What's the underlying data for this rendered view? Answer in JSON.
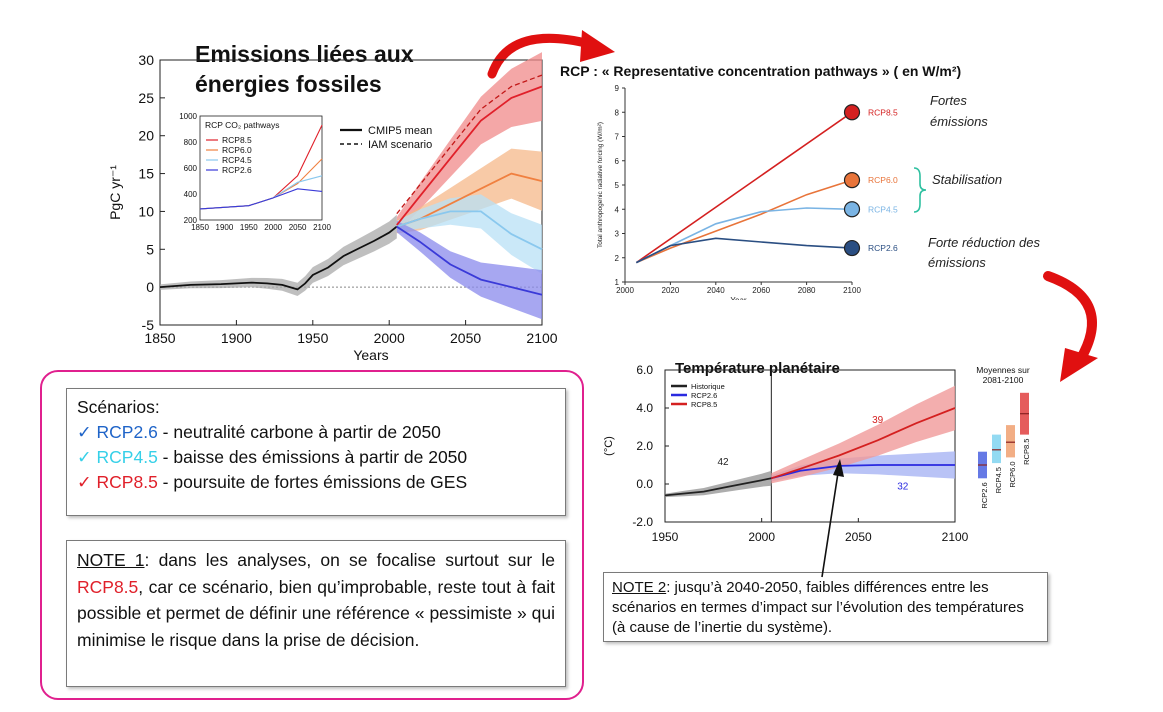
{
  "chart_data": [
    {
      "type": "line",
      "title": "Emissions liées aux énergies fossiles",
      "ylabel": "PgC yr⁻¹",
      "xlabel": "Years",
      "xlim": [
        1850,
        2100
      ],
      "ylim": [
        -5,
        30
      ],
      "xticks": [
        1850,
        1900,
        1950,
        2000,
        2050,
        2100
      ],
      "yticks": [
        -5,
        0,
        5,
        10,
        15,
        20,
        25,
        30
      ],
      "legend": [
        "CMIP5 mean",
        "IAM scenario"
      ],
      "series": [
        {
          "name": "Historical",
          "color": "#555555",
          "x": [
            1850,
            1870,
            1890,
            1910,
            1920,
            1930,
            1940,
            1945,
            1950,
            1960,
            1970,
            1980,
            1990,
            2000,
            2005
          ],
          "y": [
            0,
            0.3,
            0.4,
            0.6,
            0.5,
            0.3,
            -0.3,
            0.5,
            1.6,
            2.6,
            4.1,
            5.1,
            6.1,
            7.2,
            8.0
          ]
        },
        {
          "name": "RCP8.5",
          "color": "#e0202a",
          "x": [
            2005,
            2020,
            2040,
            2060,
            2080,
            2100
          ],
          "y": [
            8.2,
            12,
            17,
            22,
            25,
            26.5
          ]
        },
        {
          "name": "RCP6.0",
          "color": "#f08040",
          "x": [
            2005,
            2020,
            2040,
            2060,
            2080,
            2100
          ],
          "y": [
            8,
            9,
            11,
            13,
            15,
            14
          ]
        },
        {
          "name": "RCP4.5",
          "color": "#8ac8ee",
          "x": [
            2005,
            2020,
            2040,
            2060,
            2080,
            2100
          ],
          "y": [
            8,
            9,
            10,
            10,
            7,
            5
          ]
        },
        {
          "name": "RCP2.6",
          "color": "#3a3ad8",
          "x": [
            2005,
            2020,
            2040,
            2060,
            2080,
            2100
          ],
          "y": [
            8,
            6,
            3,
            1,
            0,
            -1
          ]
        }
      ],
      "inset": {
        "title": "RCP CO₂ pathways",
        "xlim": [
          1850,
          2100
        ],
        "ylim": [
          200,
          1000
        ],
        "xticks": [
          1850,
          1900,
          1950,
          2000,
          2050,
          2100
        ],
        "yticks": [
          200,
          400,
          600,
          800,
          1000
        ],
        "legend": [
          "RCP8.5",
          "RCP6.0",
          "RCP4.5",
          "RCP2.6"
        ],
        "series": [
          {
            "name": "RCP8.5",
            "color": "#e0202a",
            "x": [
              1850,
              1950,
              2000,
              2050,
              2100
            ],
            "y": [
              285,
              310,
              370,
              540,
              930
            ]
          },
          {
            "name": "RCP6.0",
            "color": "#f08040",
            "x": [
              1850,
              1950,
              2000,
              2050,
              2100
            ],
            "y": [
              285,
              310,
              370,
              480,
              670
            ]
          },
          {
            "name": "RCP4.5",
            "color": "#8ac8ee",
            "x": [
              1850,
              1950,
              2000,
              2050,
              2100
            ],
            "y": [
              285,
              310,
              370,
              490,
              540
            ]
          },
          {
            "name": "RCP2.6",
            "color": "#3a3ad8",
            "x": [
              1850,
              1950,
              2000,
              2050,
              2100
            ],
            "y": [
              285,
              310,
              370,
              440,
              420
            ]
          }
        ]
      }
    },
    {
      "type": "line",
      "title": "RCP : « Representative concentration pathways » ( en W/m²)",
      "ylabel": "Total anthropogenic radiative forcing (W/m²)",
      "xlabel": "Year",
      "xlim": [
        2000,
        2100
      ],
      "ylim": [
        1,
        9
      ],
      "xticks": [
        2000,
        2020,
        2040,
        2060,
        2080,
        2100
      ],
      "yticks": [
        1,
        2,
        3,
        4,
        5,
        6,
        7,
        8,
        9
      ],
      "series": [
        {
          "name": "RCP8.5",
          "color": "#d42020",
          "x": [
            2005,
            2100
          ],
          "y": [
            1.8,
            8.0
          ]
        },
        {
          "name": "RCP6.0",
          "color": "#e8743a",
          "x": [
            2005,
            2020,
            2040,
            2060,
            2080,
            2100
          ],
          "y": [
            1.8,
            2.4,
            3.1,
            3.8,
            4.6,
            5.2
          ]
        },
        {
          "name": "RCP4.5",
          "color": "#7ab4e4",
          "x": [
            2005,
            2020,
            2040,
            2060,
            2080,
            2100
          ],
          "y": [
            1.8,
            2.5,
            3.4,
            3.9,
            4.05,
            4.0
          ]
        },
        {
          "name": "RCP2.6",
          "color": "#2a4e82",
          "x": [
            2005,
            2020,
            2040,
            2060,
            2080,
            2100
          ],
          "y": [
            1.8,
            2.5,
            2.8,
            2.65,
            2.5,
            2.4
          ]
        }
      ],
      "annotations": [
        "Fortes émissions",
        "Stabilisation",
        "Forte réduction des émissions"
      ]
    },
    {
      "type": "line",
      "title": "Température planétaire",
      "ylabel": "(°C)",
      "xlim": [
        1950,
        2100
      ],
      "ylim": [
        -2.0,
        6.0
      ],
      "xticks": [
        1950,
        2000,
        2050,
        2100
      ],
      "yticks": [
        -2.0,
        0.0,
        2.0,
        4.0,
        6.0
      ],
      "legend": [
        "Historique",
        "RCP2.6",
        "RCP8.5"
      ],
      "series": [
        {
          "name": "Historique",
          "color": "#222222",
          "x": [
            1950,
            1960,
            1970,
            1980,
            1990,
            2000,
            2005
          ],
          "y": [
            -0.6,
            -0.5,
            -0.4,
            -0.2,
            0.0,
            0.2,
            0.3
          ]
        },
        {
          "name": "RCP2.6",
          "color": "#2a2ae0",
          "x": [
            2005,
            2020,
            2040,
            2060,
            2080,
            2100
          ],
          "y": [
            0.3,
            0.7,
            0.95,
            1.0,
            1.0,
            1.0
          ]
        },
        {
          "name": "RCP8.5",
          "color": "#d42020",
          "x": [
            2005,
            2020,
            2040,
            2060,
            2080,
            2100
          ],
          "y": [
            0.3,
            0.8,
            1.5,
            2.3,
            3.2,
            4.0
          ]
        }
      ],
      "data_labels": [
        "42",
        "39",
        "32"
      ],
      "side_panel": {
        "title": "Moyennes sur 2081-2100",
        "bars": [
          {
            "name": "RCP2.6",
            "color": "#4a62e0",
            "low": 0.3,
            "high": 1.7,
            "mean": 1.0
          },
          {
            "name": "RCP4.5",
            "color": "#80d4f0",
            "low": 1.1,
            "high": 2.6,
            "mean": 1.8
          },
          {
            "name": "RCP6.0",
            "color": "#f0a070",
            "low": 1.4,
            "high": 3.1,
            "mean": 2.2
          },
          {
            "name": "RCP8.5",
            "color": "#e04040",
            "low": 2.6,
            "high": 4.8,
            "mean": 3.7
          }
        ]
      }
    }
  ],
  "scenarios": {
    "heading": "Scénarios:",
    "check": "✓",
    "items": [
      {
        "code": "RCP2.6",
        "sep": " - ",
        "text": "neutralité carbone à partir de 2050",
        "color": "#1f64c8"
      },
      {
        "code": "RCP4.5",
        "sep": " - ",
        "text": "baisse des émissions à partir de 2050",
        "color": "#36d0e8"
      },
      {
        "code": "RCP8.5",
        "sep": " - ",
        "text": "poursuite de fortes émissions de GES",
        "color": "#e0202a"
      }
    ]
  },
  "note1": {
    "label": "NOTE 1",
    "pre": ": dans les analyses, on se focalise surtout sur le ",
    "highlight": "RCP8.5",
    "post": ", car ce scénario, bien qu’improbable, reste tout à fait possible et permet de définir une référence « pessimiste » qui minimise le risque dans la prise de décision."
  },
  "note2": {
    "label": "NOTE 2",
    "text": ": jusqu’à 2040-2050, faibles différences entre les scénarios en termes d’impact sur l’évolution des températures (à cause de l’inertie du système)."
  }
}
